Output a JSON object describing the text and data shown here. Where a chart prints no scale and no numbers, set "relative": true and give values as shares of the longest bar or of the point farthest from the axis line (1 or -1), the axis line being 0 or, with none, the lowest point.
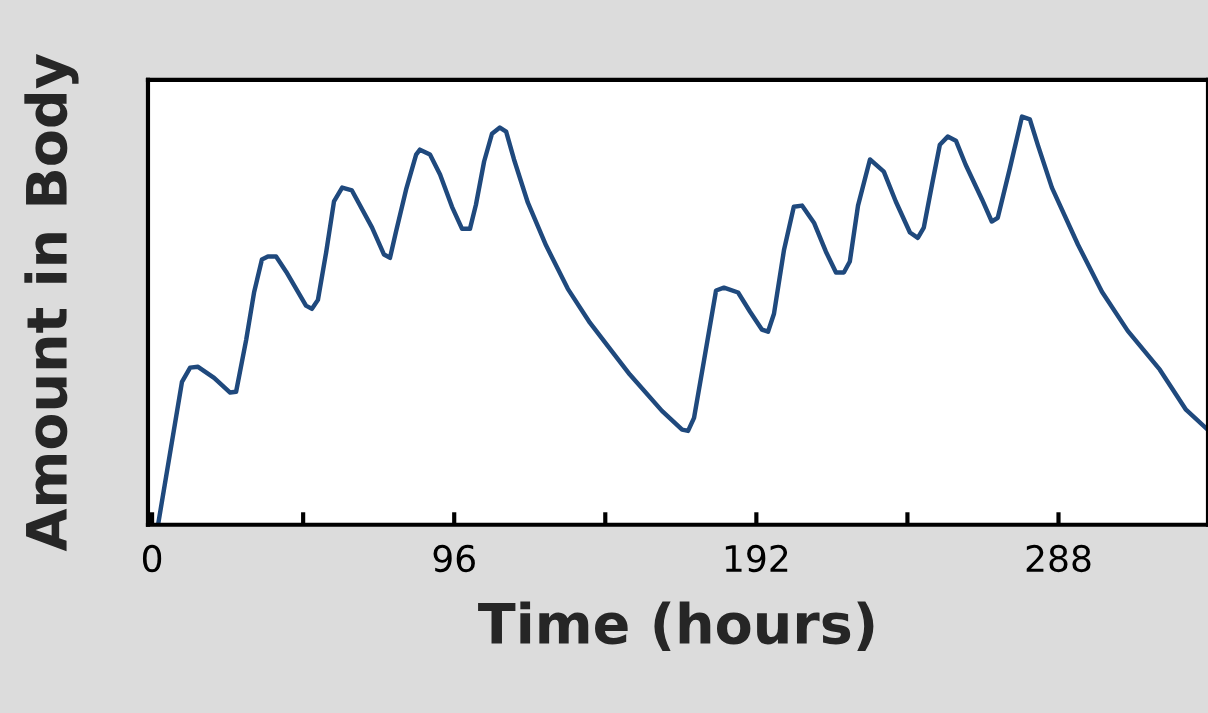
{
  "chart_data": {
    "type": "line",
    "xlabel": "Time (hours)",
    "ylabel": "Amount in Body",
    "relative": true,
    "xlim": [
      -1.3,
      335.5
    ],
    "xticks": [
      0,
      {
        "value": 48,
        "label": null
      },
      96,
      {
        "value": 144,
        "label": null
      },
      192,
      {
        "value": 240,
        "label": null
      },
      288
    ],
    "grid": false,
    "legend": false,
    "marker": "none",
    "line_style": "solid",
    "series": [
      {
        "color": "#1f497d",
        "x": [
          1.9,
          9.5,
          12.1,
          14.6,
          19.7,
          24.8,
          26.7,
          29.9,
          32.4,
          34.9,
          36.8,
          39.4,
          42.6,
          48.9,
          50.8,
          52.7,
          55.3,
          57.8,
          60.4,
          63.5,
          69.9,
          73.7,
          75.6,
          77.5,
          80.7,
          83.9,
          85.1,
          88.3,
          91.5,
          95.3,
          98.5,
          101.0,
          102.9,
          105.5,
          108.0,
          110.5,
          112.5,
          115.0,
          119.4,
          125.2,
          132.1,
          139.1,
          145.5,
          151.8,
          162.0,
          168.4,
          170.3,
          172.2,
          175.4,
          179.2,
          181.7,
          186.2,
          190.0,
          193.8,
          195.7,
          197.6,
          200.8,
          203.9,
          206.5,
          210.3,
          214.1,
          217.3,
          219.8,
          221.7,
          224.3,
          228.1,
          232.5,
          236.3,
          240.8,
          243.3,
          245.2,
          247.8,
          250.3,
          252.8,
          255.4,
          258.5,
          263.7,
          266.8,
          268.7,
          272.6,
          276.4,
          278.9,
          281.5,
          285.9,
          294.2,
          301.8,
          310.0,
          320.2,
          328.5,
          335.4
        ],
        "values": [
          0,
          0.35,
          0.385,
          0.387,
          0.36,
          0.324,
          0.326,
          0.453,
          0.569,
          0.65,
          0.657,
          0.657,
          0.62,
          0.537,
          0.529,
          0.551,
          0.667,
          0.792,
          0.826,
          0.819,
          0.728,
          0.662,
          0.654,
          0.718,
          0.821,
          0.907,
          0.919,
          0.907,
          0.858,
          0.779,
          0.725,
          0.725,
          0.784,
          0.89,
          0.958,
          0.973,
          0.963,
          0.895,
          0.789,
          0.684,
          0.578,
          0.495,
          0.431,
          0.368,
          0.279,
          0.233,
          0.23,
          0.262,
          0.404,
          0.574,
          0.581,
          0.569,
          0.522,
          0.478,
          0.473,
          0.517,
          0.674,
          0.779,
          0.782,
          0.74,
          0.669,
          0.618,
          0.618,
          0.645,
          0.782,
          0.895,
          0.865,
          0.792,
          0.716,
          0.703,
          0.728,
          0.833,
          0.931,
          0.951,
          0.941,
          0.882,
          0.797,
          0.743,
          0.752,
          0.875,
          1.0,
          0.993,
          0.929,
          0.826,
          0.686,
          0.571,
          0.475,
          0.38,
          0.282,
          0.233
        ]
      }
    ]
  }
}
